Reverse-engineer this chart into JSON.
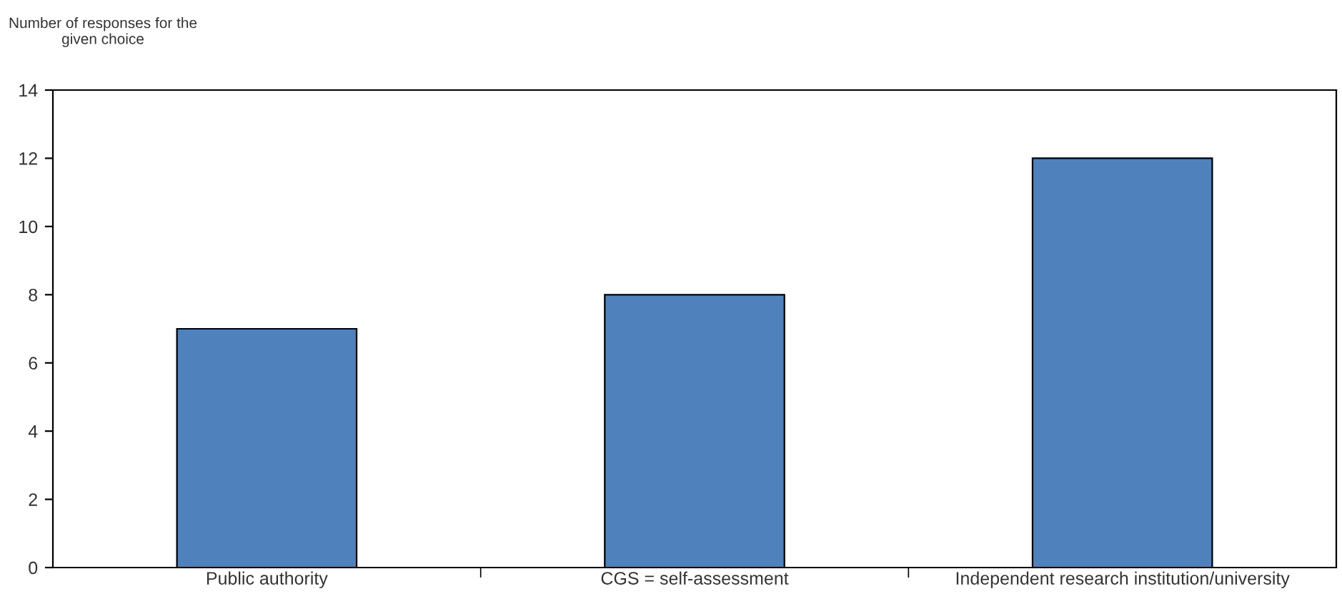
{
  "chart_data": {
    "type": "bar",
    "ylabel": "Number of responses for the\ngiven choice",
    "categories": [
      "Public authority",
      "CGS = self-assessment",
      "Independent research institution/university"
    ],
    "values": [
      7,
      8,
      12
    ],
    "color": "#4f81bd",
    "ylim": [
      0,
      14
    ],
    "yticks": [
      0,
      2,
      4,
      6,
      8,
      10,
      12,
      14
    ],
    "grid": false,
    "legend": false
  }
}
